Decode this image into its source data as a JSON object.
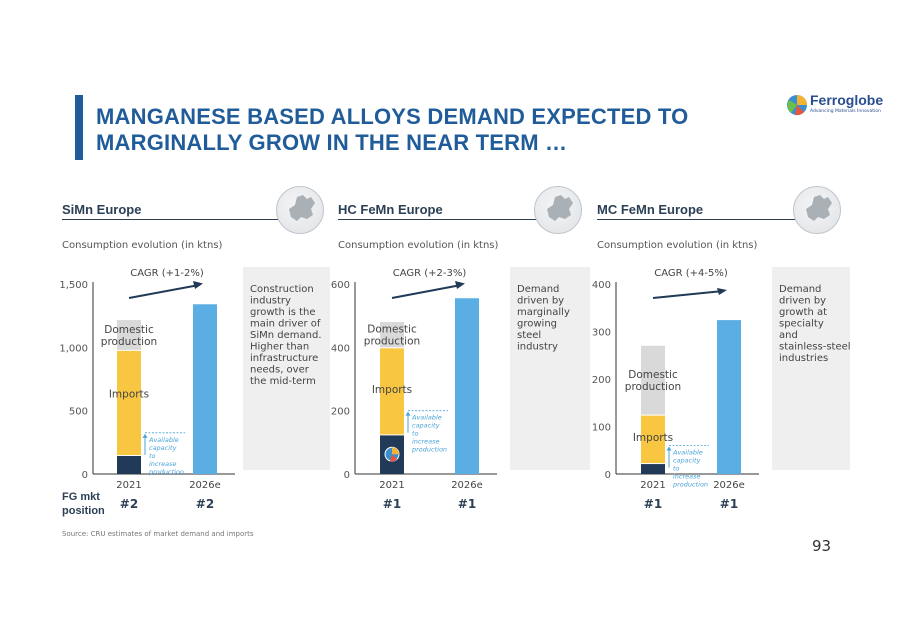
{
  "header": {
    "title_line1": "MANGANESE BASED ALLOYS DEMAND EXPECTED TO",
    "title_line2": "MARGINALLY GROW IN THE NEAR TERM …",
    "logo_name": "Ferroglobe",
    "logo_tagline": "Advancing Materials Innovation"
  },
  "colors": {
    "title": "#1f5c99",
    "domestic": "#d9d9d9",
    "imports": "#f9c642",
    "ferroglobe": "#203a57",
    "forecast": "#5aaee3",
    "capacity_arrow": "#4aa3d8",
    "note_box": "#efefef"
  },
  "fg_mkt_position_label": "FG mkt position",
  "source": "Source: CRU estimates of market demand and imports",
  "page_number": "93",
  "chart_data": [
    {
      "type": "bar",
      "section_title": "SiMn Europe",
      "subtitle": "Consumption evolution (in ktns)",
      "categories": [
        "2021",
        "2026e"
      ],
      "ylim": [
        0,
        1500
      ],
      "yticks": [
        0,
        500,
        1000,
        1500
      ],
      "ytick_labels": [
        "0",
        "500",
        "1,000",
        "1,500"
      ],
      "stack_2021": {
        "ferroglobe": 150,
        "imports": 830,
        "domestic": 235
      },
      "forecast_2026e": 1340,
      "available_capacity_level": 325,
      "labels": {
        "domestic": "Domestic production",
        "imports": "Imports",
        "capacity": "Available capacity to increase production"
      },
      "cagr": "CAGR (+1-2%)",
      "note": "Construction industry growth is the main driver of SiMn demand. Higher than infrastructure needs, over the mid-term",
      "fg_position": [
        "#2",
        "#2"
      ]
    },
    {
      "type": "bar",
      "section_title": "HC FeMn Europe",
      "subtitle": "Consumption evolution (in ktns)",
      "categories": [
        "2021",
        "2026e"
      ],
      "ylim": [
        0,
        600
      ],
      "yticks": [
        0,
        200,
        400,
        600
      ],
      "ytick_labels": [
        "0",
        "200",
        "400",
        "600"
      ],
      "stack_2021": {
        "ferroglobe": 125,
        "imports": 275,
        "domestic": 80
      },
      "forecast_2026e": 555,
      "available_capacity_level": 200,
      "labels": {
        "domestic": "Domestic production",
        "imports": "Imports",
        "capacity": "Available capacity to increase production"
      },
      "cagr": "CAGR (+2-3%)",
      "note": "Demand driven by marginally growing steel industry",
      "fg_position": [
        "#1",
        "#1"
      ]
    },
    {
      "type": "bar",
      "section_title": "MC FeMn Europe",
      "subtitle": "Consumption evolution (in ktns)",
      "categories": [
        "2021",
        "2026e"
      ],
      "ylim": [
        0,
        400
      ],
      "yticks": [
        0,
        100,
        200,
        300,
        400
      ],
      "ytick_labels": [
        "0",
        "100",
        "200",
        "300",
        "400"
      ],
      "stack_2021": {
        "ferroglobe": 23,
        "imports": 102,
        "domestic": 145
      },
      "forecast_2026e": 324,
      "available_capacity_level": 60,
      "labels": {
        "domestic": "Domestic production",
        "imports": "Imports",
        "capacity": "Available capacity to increase production"
      },
      "cagr": "CAGR (+4-5%)",
      "note": "Demand driven by growth at specialty and stainless-steel industries",
      "fg_position": [
        "#1",
        "#1"
      ]
    }
  ]
}
